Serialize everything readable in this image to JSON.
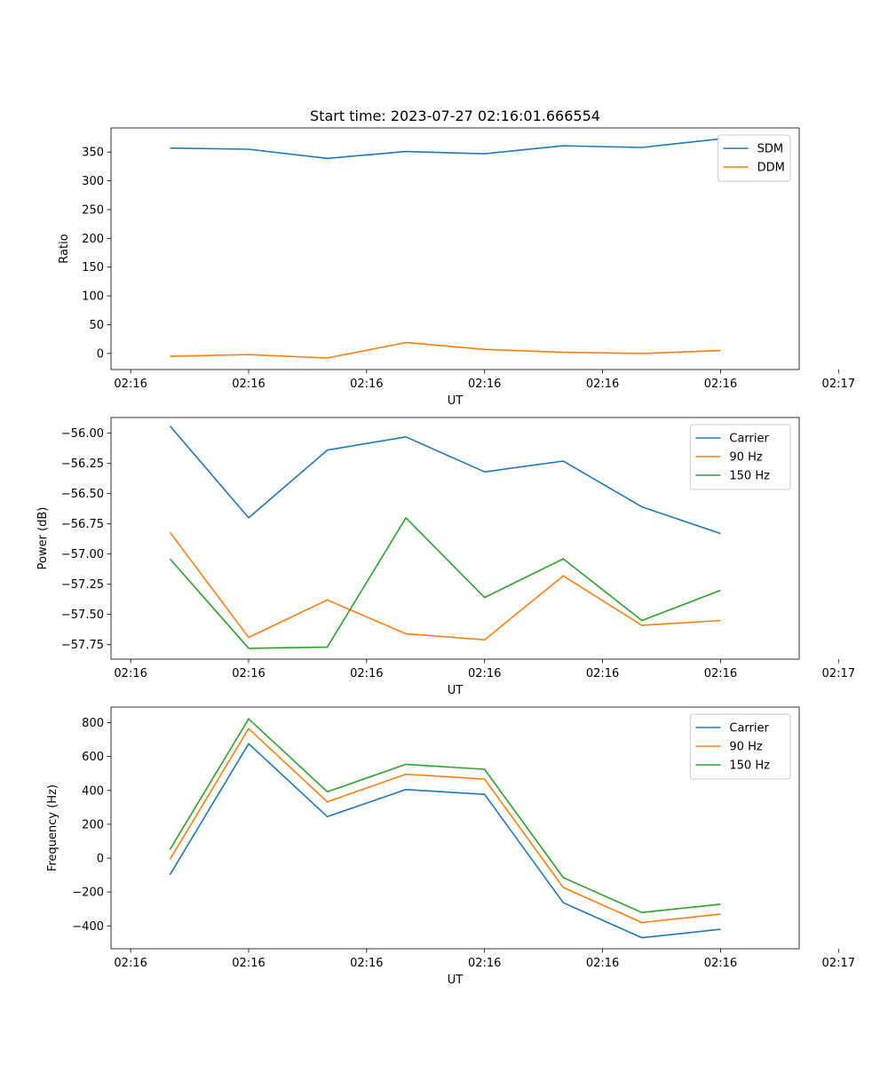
{
  "figure_title": "Start time: 2023-07-27 02:16:01.666554",
  "colors": {
    "c0": "#1f77b4",
    "c1": "#ff7f0e",
    "c2": "#2ca02c"
  },
  "chart_data": [
    {
      "type": "line",
      "title": "Start time: 2023-07-27 02:16:01.666554",
      "xlabel": "UT",
      "ylabel": "Ratio",
      "x": [
        1,
        2,
        3,
        4,
        5,
        6,
        7,
        8
      ],
      "xlim": [
        0.25,
        9.0
      ],
      "xticks": [
        0.5,
        2,
        3.5,
        5,
        6.5,
        8,
        9.5
      ],
      "xtick_labels": [
        "02:16",
        "02:16",
        "02:16",
        "02:16",
        "02:16",
        "02:16",
        "02:17"
      ],
      "ylim": [
        -28,
        392
      ],
      "yticks": [
        0,
        50,
        100,
        150,
        200,
        250,
        300,
        350
      ],
      "ytick_labels": [
        "0",
        "50",
        "100",
        "150",
        "200",
        "250",
        "300",
        "350"
      ],
      "legend_loc": "upper right",
      "series": [
        {
          "name": "SDM",
          "color": "#1f77b4",
          "values": [
            357,
            355,
            339,
            351,
            347,
            361,
            358,
            373
          ]
        },
        {
          "name": "DDM",
          "color": "#ff7f0e",
          "values": [
            -5,
            -2,
            -8,
            19,
            7,
            2,
            0,
            5
          ]
        }
      ]
    },
    {
      "type": "line",
      "title": "",
      "xlabel": "UT",
      "ylabel": "Power (dB)",
      "x": [
        1,
        2,
        3,
        4,
        5,
        6,
        7,
        8
      ],
      "xlim": [
        0.25,
        9.0
      ],
      "xticks": [
        0.5,
        2,
        3.5,
        5,
        6.5,
        8,
        9.5
      ],
      "xtick_labels": [
        "02:16",
        "02:16",
        "02:16",
        "02:16",
        "02:16",
        "02:16",
        "02:17"
      ],
      "ylim": [
        -57.87,
        -55.87
      ],
      "yticks": [
        -56.0,
        -56.25,
        -56.5,
        -56.75,
        -57.0,
        -57.25,
        -57.5,
        -57.75
      ],
      "ytick_labels": [
        "−56.00",
        "−56.25",
        "−56.50",
        "−56.75",
        "−57.00",
        "−57.25",
        "−57.50",
        "−57.75"
      ],
      "legend_loc": "upper right",
      "series": [
        {
          "name": "Carrier",
          "color": "#1f77b4",
          "values": [
            -55.94,
            -56.7,
            -56.14,
            -56.03,
            -56.32,
            -56.23,
            -56.61,
            -56.83
          ]
        },
        {
          "name": "90 Hz",
          "color": "#ff7f0e",
          "values": [
            -56.82,
            -57.69,
            -57.38,
            -57.66,
            -57.71,
            -57.18,
            -57.59,
            -57.55
          ]
        },
        {
          "name": "150 Hz",
          "color": "#2ca02c",
          "values": [
            -57.04,
            -57.78,
            -57.77,
            -56.7,
            -57.36,
            -57.04,
            -57.55,
            -57.3
          ]
        }
      ]
    },
    {
      "type": "line",
      "title": "",
      "xlabel": "UT",
      "ylabel": "Frequency (Hz)",
      "x": [
        1,
        2,
        3,
        4,
        5,
        6,
        7,
        8
      ],
      "xlim": [
        0.25,
        9.0
      ],
      "xticks": [
        0.5,
        2,
        3.5,
        5,
        6.5,
        8,
        9.5
      ],
      "xtick_labels": [
        "02:16",
        "02:16",
        "02:16",
        "02:16",
        "02:16",
        "02:16",
        "02:17"
      ],
      "ylim": [
        -535,
        892
      ],
      "yticks": [
        800,
        600,
        400,
        200,
        0,
        -200,
        -400
      ],
      "ytick_labels": [
        "800",
        "600",
        "400",
        "200",
        "0",
        "−200",
        "−400"
      ],
      "legend_loc": "upper right",
      "series": [
        {
          "name": "Carrier",
          "color": "#1f77b4",
          "values": [
            -98,
            676,
            245,
            405,
            377,
            -263,
            -470,
            -420
          ]
        },
        {
          "name": "90 Hz",
          "color": "#ff7f0e",
          "values": [
            -7,
            765,
            333,
            496,
            467,
            -173,
            -380,
            -330
          ]
        },
        {
          "name": "150 Hz",
          "color": "#2ca02c",
          "values": [
            51,
            823,
            392,
            554,
            525,
            -115,
            -321,
            -272
          ]
        }
      ]
    }
  ]
}
